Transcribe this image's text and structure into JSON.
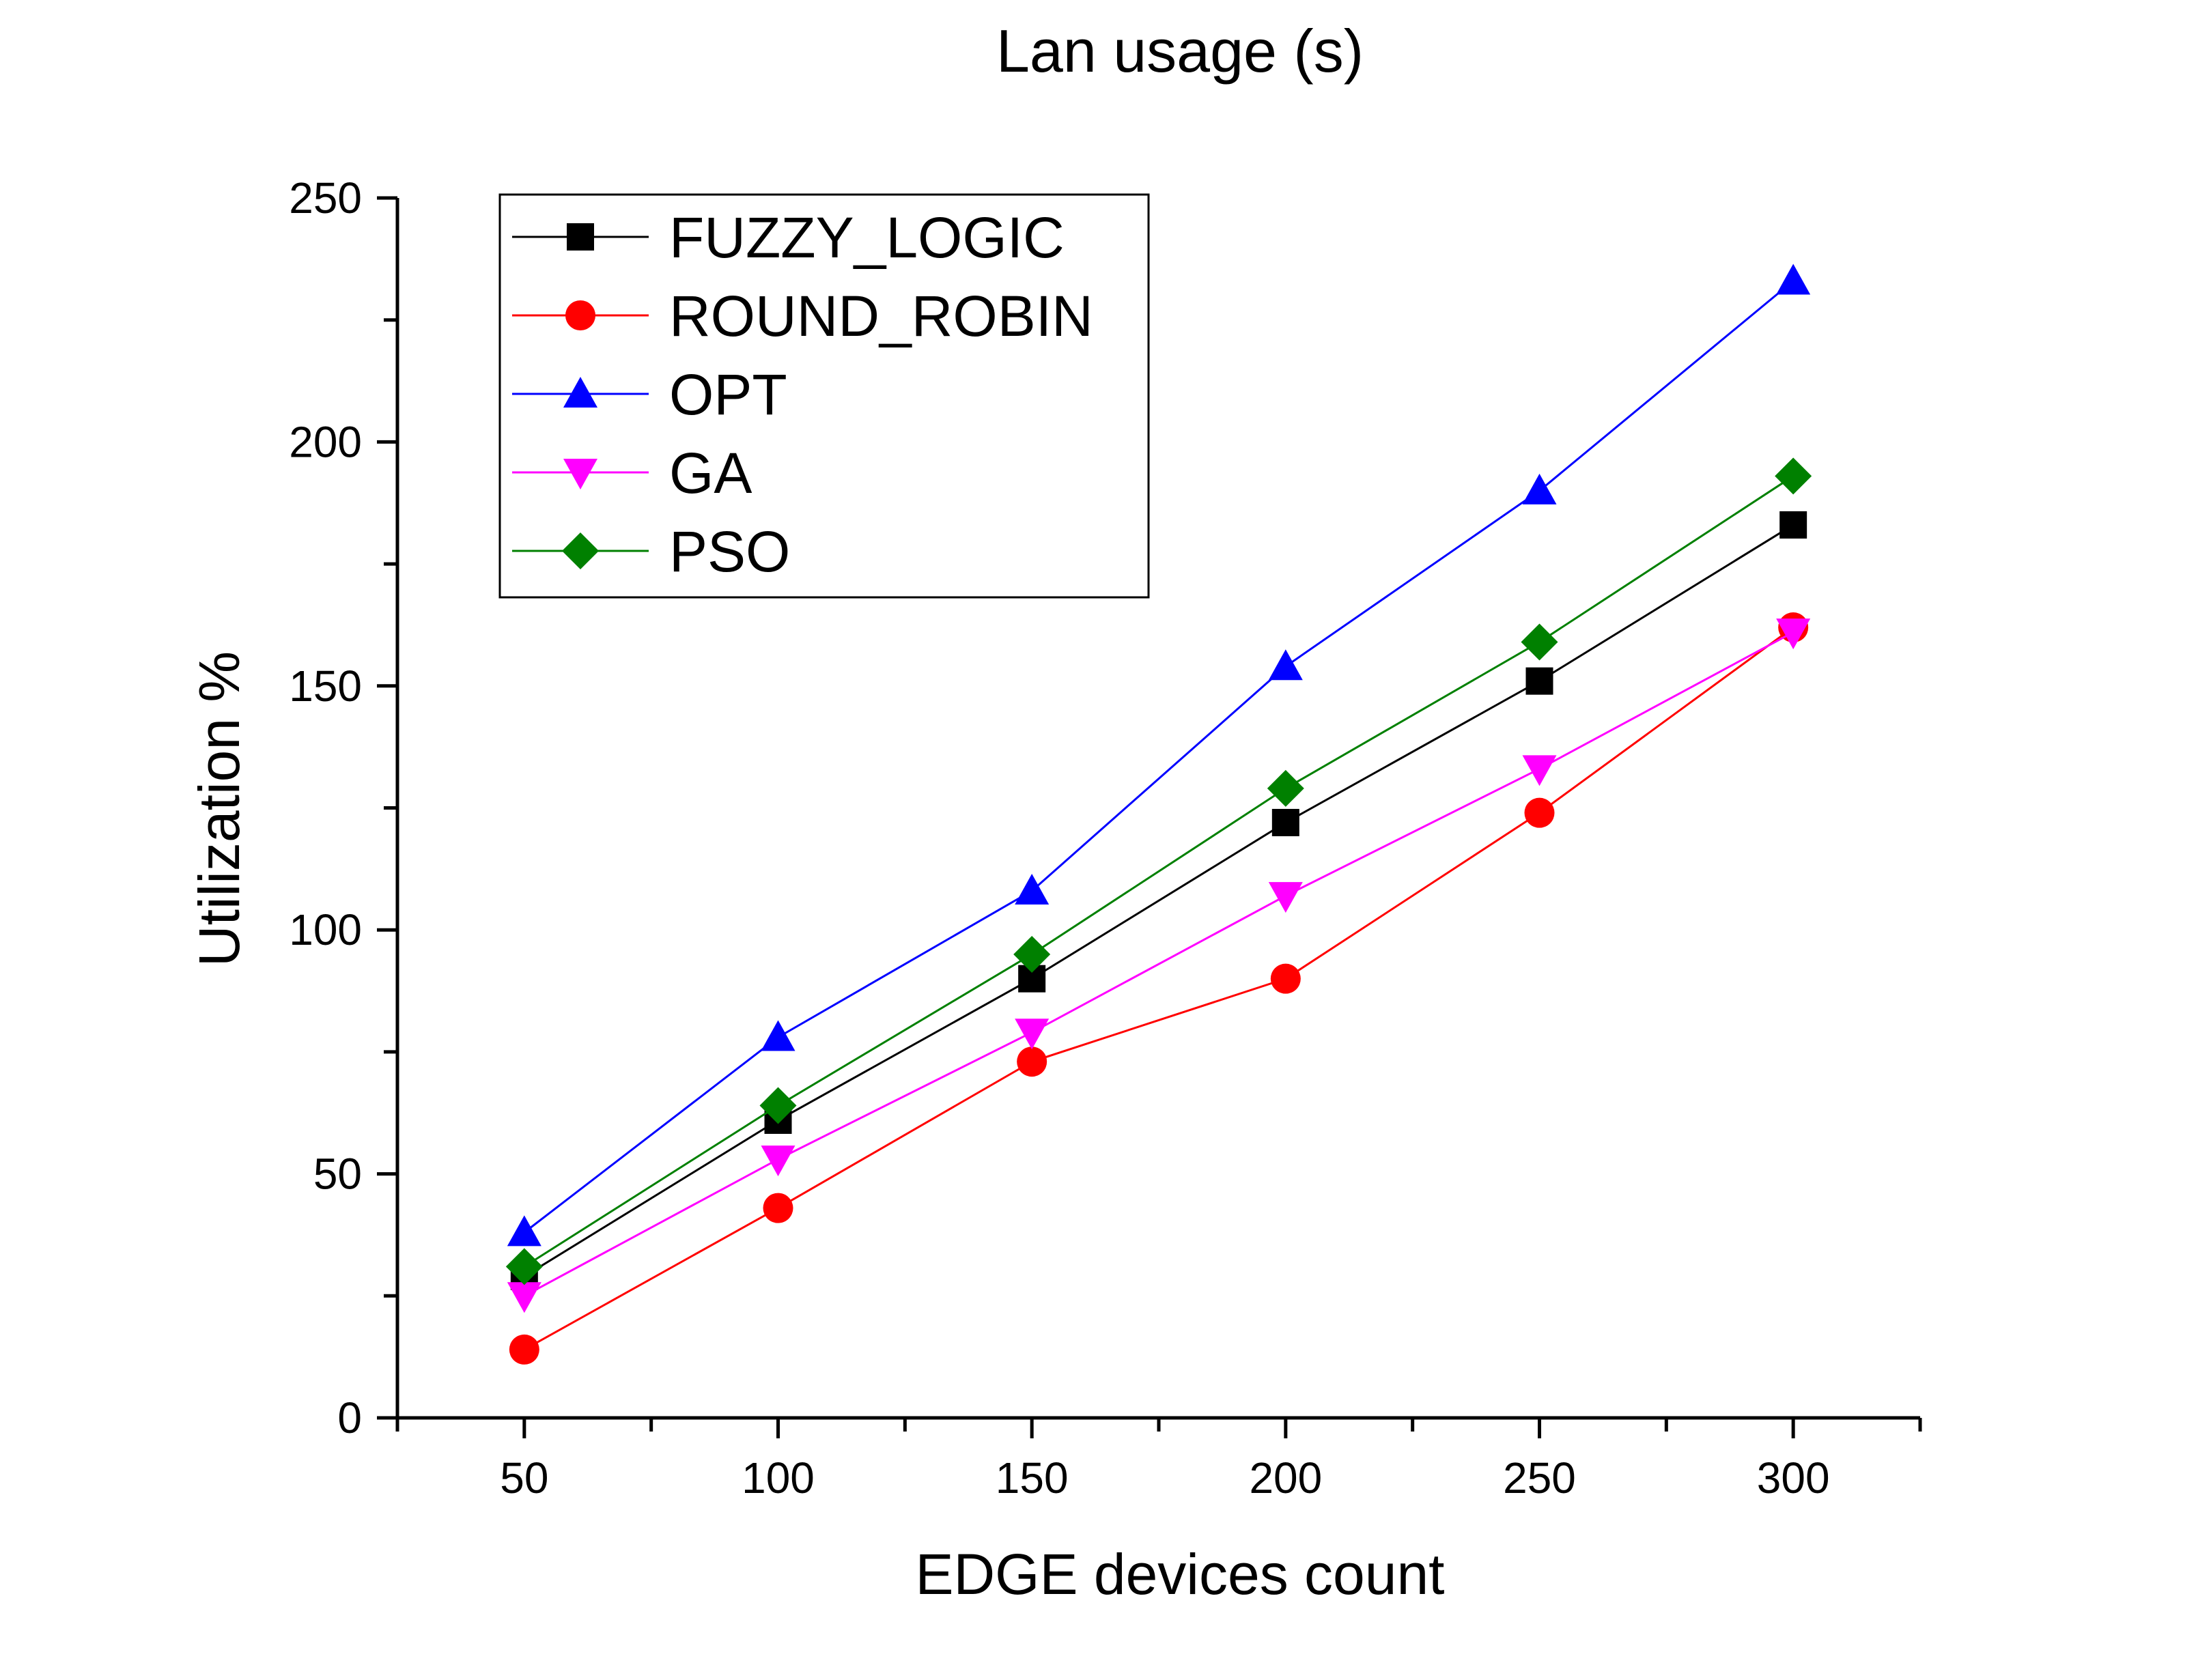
{
  "chart_data": {
    "type": "line",
    "title": "Lan usage (s)",
    "xlabel": "EDGE devices count",
    "ylabel": "Utilization %",
    "x": [
      50,
      100,
      150,
      200,
      250,
      300
    ],
    "xlim": [
      25,
      325
    ],
    "ylim": [
      0,
      250
    ],
    "xticks": [
      "50",
      "100",
      "150",
      "200",
      "250",
      "300"
    ],
    "yticks": [
      "0",
      "50",
      "100",
      "150",
      "200",
      "250"
    ],
    "grid": false,
    "legend_position": "top-left",
    "series": [
      {
        "name": "FUZZY_LOGIC",
        "color": "#000000",
        "marker": "square",
        "values": [
          29,
          61,
          90,
          122,
          151,
          183
        ]
      },
      {
        "name": "ROUND_ROBIN",
        "color": "#ff0000",
        "marker": "circle",
        "values": [
          14,
          43,
          73,
          90,
          124,
          162
        ]
      },
      {
        "name": "OPT",
        "color": "#0000ff",
        "marker": "triangle-up",
        "values": [
          38,
          78,
          108,
          154,
          190,
          233
        ]
      },
      {
        "name": "GA",
        "color": "#ff00ff",
        "marker": "triangle-down",
        "values": [
          25,
          53,
          79,
          107,
          133,
          161
        ]
      },
      {
        "name": "PSO",
        "color": "#008000",
        "marker": "diamond",
        "values": [
          31,
          64,
          95,
          129,
          159,
          193
        ]
      }
    ]
  }
}
